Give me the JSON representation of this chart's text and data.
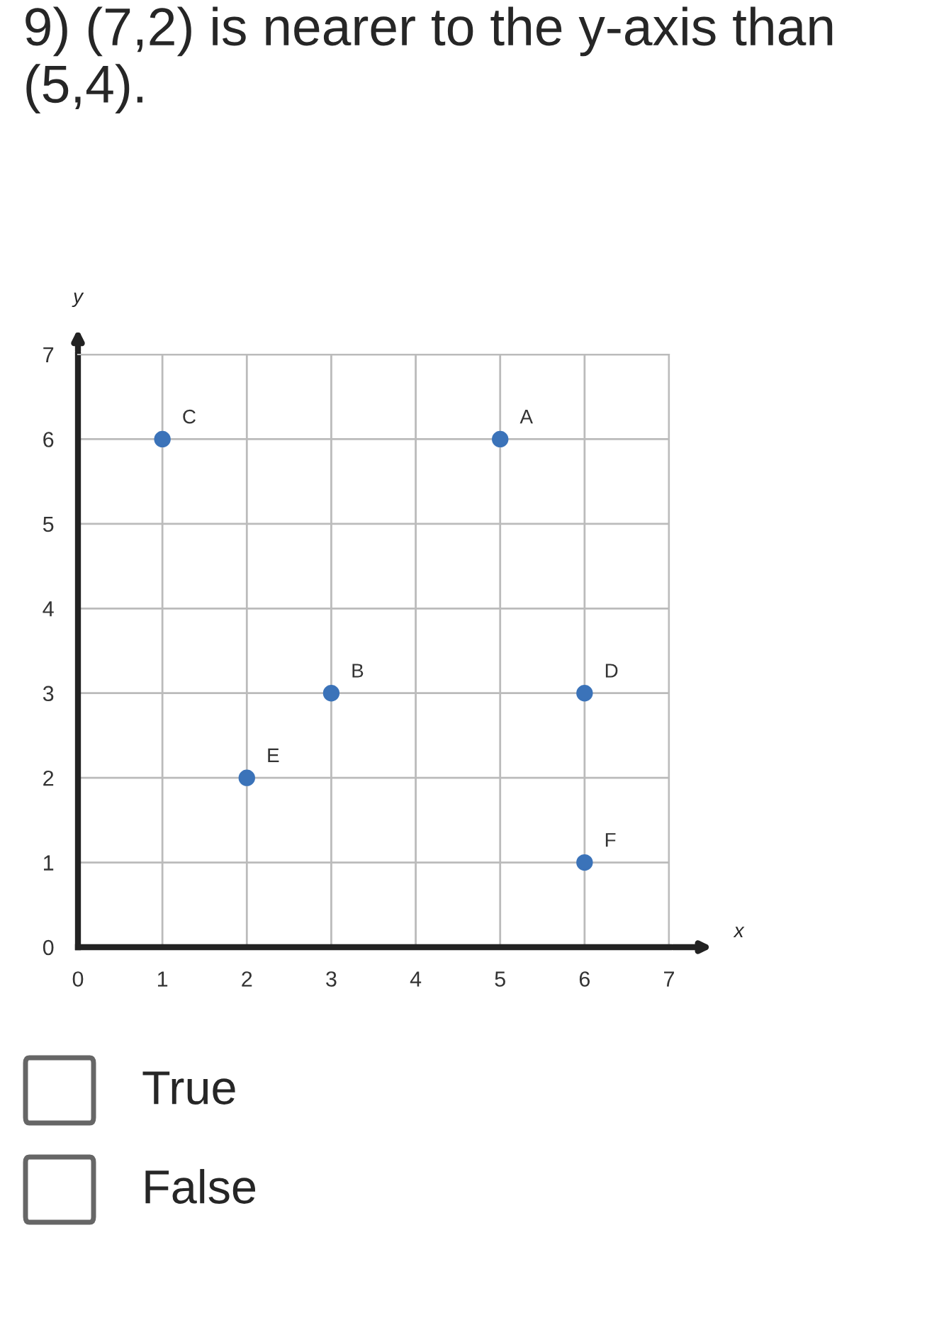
{
  "chart_data": {
    "type": "scatter",
    "title": "9) (7,2) is nearer to the y-axis than (5,4).",
    "xlabel": "x",
    "ylabel": "y",
    "x": [
      5,
      3,
      1,
      6,
      2,
      6
    ],
    "series": [
      {
        "color": "#3b73b9",
        "values": [
          6,
          3,
          6,
          3,
          2,
          1
        ]
      }
    ],
    "xlim": [
      0,
      7
    ],
    "ylim": [
      0,
      7
    ],
    "xticks": [
      0,
      1,
      2,
      3,
      4,
      5,
      6,
      7
    ],
    "yticks": [
      0,
      1,
      2,
      3,
      4,
      5,
      6,
      7
    ],
    "grid": true,
    "marker": "circle",
    "annotations": [
      {
        "text": "A",
        "x": 5,
        "y": 6
      },
      {
        "text": "B",
        "x": 3,
        "y": 3
      },
      {
        "text": "C",
        "x": 1,
        "y": 6
      },
      {
        "text": "D",
        "x": 6,
        "y": 3
      },
      {
        "text": "E",
        "x": 2,
        "y": 2
      },
      {
        "text": "F",
        "x": 6,
        "y": 1
      },
      "True",
      "False"
    ]
  }
}
